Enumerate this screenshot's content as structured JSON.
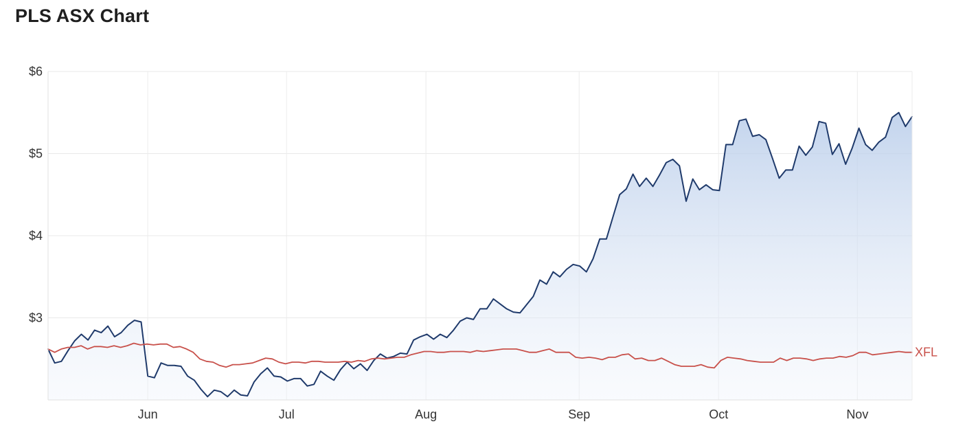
{
  "page": {
    "title": "PLS ASX Chart"
  },
  "chart_data": {
    "type": "line",
    "title": "PLS ASX Chart",
    "xlabel": "",
    "ylabel": "",
    "ylim": [
      2,
      6
    ],
    "yticks": [
      {
        "value": 6,
        "label": "$6"
      },
      {
        "value": 5,
        "label": "$5"
      },
      {
        "value": 4,
        "label": "$4"
      },
      {
        "value": 3,
        "label": "$3"
      }
    ],
    "xlim": [
      0,
      150
    ],
    "xticks": [
      {
        "value": 17.3,
        "label": "Jun"
      },
      {
        "value": 41.4,
        "label": "Jul"
      },
      {
        "value": 65.6,
        "label": "Aug"
      },
      {
        "value": 92.2,
        "label": "Sep"
      },
      {
        "value": 116.4,
        "label": "Oct"
      },
      {
        "value": 140.5,
        "label": "Nov"
      }
    ],
    "grid": true,
    "series": [
      {
        "name": "",
        "color": "#1f3a6b",
        "area": true,
        "values": [
          2.62,
          2.45,
          2.47,
          2.6,
          2.72,
          2.8,
          2.73,
          2.85,
          2.82,
          2.9,
          2.77,
          2.82,
          2.91,
          2.97,
          2.95,
          2.29,
          2.27,
          2.45,
          2.42,
          2.42,
          2.41,
          2.29,
          2.24,
          2.13,
          2.04,
          2.12,
          2.1,
          2.04,
          2.12,
          2.06,
          2.05,
          2.22,
          2.32,
          2.39,
          2.29,
          2.28,
          2.23,
          2.26,
          2.26,
          2.17,
          2.19,
          2.35,
          2.29,
          2.24,
          2.37,
          2.46,
          2.38,
          2.44,
          2.36,
          2.48,
          2.56,
          2.51,
          2.53,
          2.57,
          2.56,
          2.73,
          2.77,
          2.8,
          2.74,
          2.8,
          2.76,
          2.85,
          2.96,
          3.0,
          2.98,
          3.11,
          3.11,
          3.23,
          3.17,
          3.11,
          3.07,
          3.06,
          3.16,
          3.26,
          3.46,
          3.41,
          3.56,
          3.5,
          3.59,
          3.65,
          3.63,
          3.56,
          3.72,
          3.96,
          3.96,
          4.23,
          4.5,
          4.57,
          4.75,
          4.6,
          4.7,
          4.6,
          4.74,
          4.89,
          4.93,
          4.85,
          4.42,
          4.69,
          4.56,
          4.62,
          4.56,
          4.55,
          5.11,
          5.11,
          5.4,
          5.42,
          5.21,
          5.23,
          5.17,
          4.94,
          4.7,
          4.8,
          4.8,
          5.09,
          4.98,
          5.08,
          5.39,
          5.37,
          4.99,
          5.12,
          4.87,
          5.07,
          5.31,
          5.11,
          5.04,
          5.14,
          5.2,
          5.44,
          5.5,
          5.33,
          5.45
        ]
      },
      {
        "name": "XFL",
        "color": "#c8504a",
        "area": false,
        "values": [
          2.62,
          2.58,
          2.62,
          2.64,
          2.64,
          2.66,
          2.62,
          2.65,
          2.65,
          2.64,
          2.66,
          2.64,
          2.66,
          2.69,
          2.67,
          2.68,
          2.67,
          2.68,
          2.68,
          2.64,
          2.65,
          2.62,
          2.58,
          2.5,
          2.47,
          2.46,
          2.42,
          2.4,
          2.43,
          2.43,
          2.44,
          2.45,
          2.48,
          2.51,
          2.5,
          2.46,
          2.44,
          2.46,
          2.46,
          2.45,
          2.47,
          2.47,
          2.46,
          2.46,
          2.46,
          2.47,
          2.46,
          2.48,
          2.47,
          2.5,
          2.51,
          2.5,
          2.51,
          2.52,
          2.52,
          2.55,
          2.57,
          2.59,
          2.59,
          2.58,
          2.58,
          2.59,
          2.59,
          2.59,
          2.58,
          2.6,
          2.59,
          2.6,
          2.61,
          2.62,
          2.62,
          2.62,
          2.6,
          2.58,
          2.58,
          2.6,
          2.62,
          2.58,
          2.58,
          2.58,
          2.52,
          2.51,
          2.52,
          2.51,
          2.49,
          2.52,
          2.52,
          2.55,
          2.56,
          2.5,
          2.51,
          2.48,
          2.48,
          2.51,
          2.47,
          2.43,
          2.41,
          2.41,
          2.41,
          2.43,
          2.4,
          2.39,
          2.48,
          2.52,
          2.51,
          2.5,
          2.48,
          2.47,
          2.46,
          2.46,
          2.46,
          2.51,
          2.48,
          2.51,
          2.51,
          2.5,
          2.48,
          2.5,
          2.51,
          2.51,
          2.53,
          2.52,
          2.54,
          2.58,
          2.58,
          2.55,
          2.56,
          2.57,
          2.58,
          2.59,
          2.58,
          2.58
        ]
      }
    ]
  }
}
